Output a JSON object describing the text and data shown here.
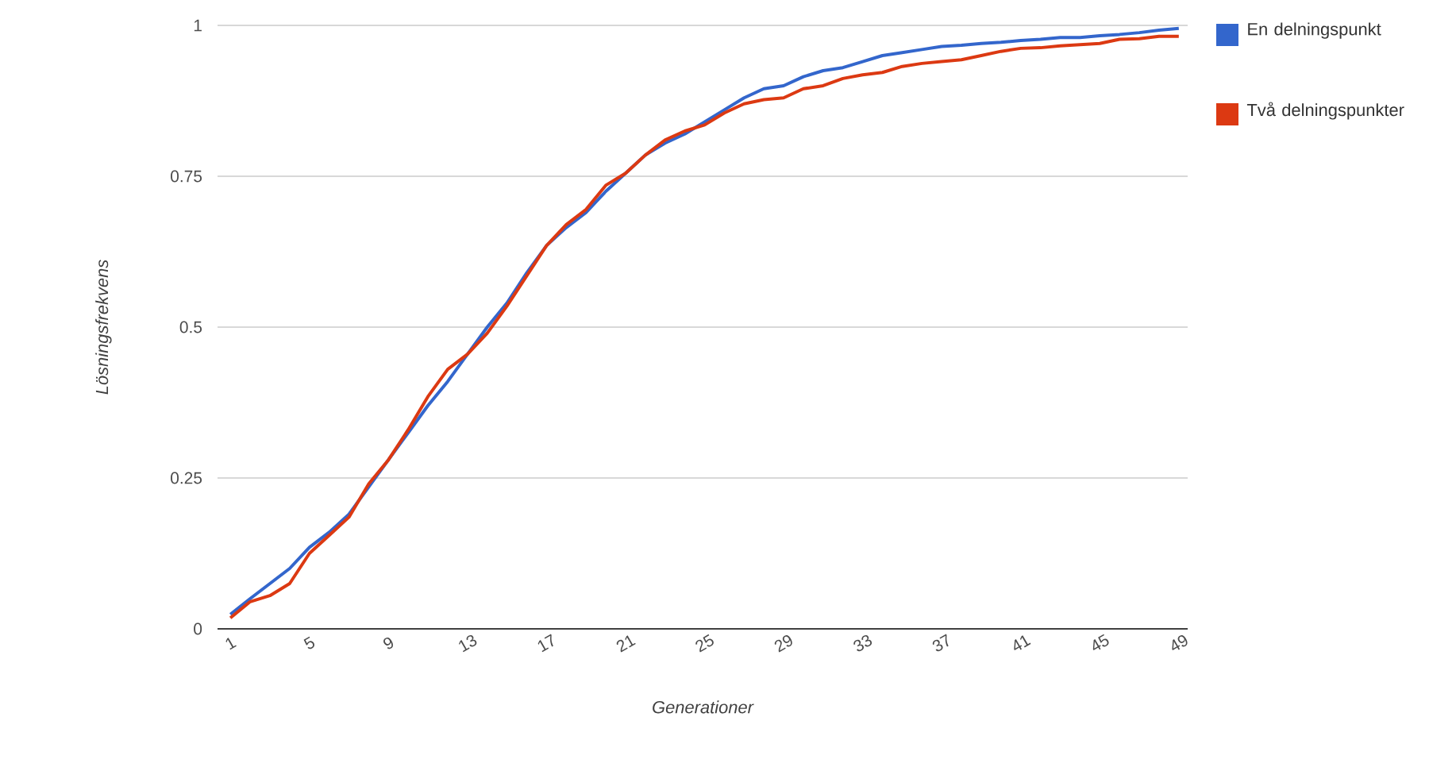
{
  "chart_data": {
    "type": "line",
    "xlabel": "Generationer",
    "ylabel": "Lösningsfrekvens",
    "categories": [
      "1",
      null,
      null,
      null,
      "5",
      null,
      null,
      null,
      "9",
      null,
      null,
      null,
      "13",
      null,
      null,
      null,
      "17",
      null,
      null,
      null,
      "21",
      null,
      null,
      null,
      "25",
      null,
      null,
      null,
      "29",
      null,
      null,
      null,
      "33",
      null,
      null,
      null,
      "37",
      null,
      null,
      null,
      "41",
      null,
      null,
      null,
      "45",
      null,
      null,
      null,
      "49"
    ],
    "series": [
      {
        "name": "En delningspunkt",
        "color": "#3366cc",
        "values": [
          0.024,
          0.05,
          0.075,
          0.1,
          0.135,
          0.16,
          0.19,
          0.235,
          0.28,
          0.325,
          0.37,
          0.41,
          0.455,
          0.5,
          0.54,
          0.59,
          0.635,
          0.665,
          0.69,
          0.725,
          0.755,
          0.785,
          0.805,
          0.82,
          0.84,
          0.86,
          0.88,
          0.895,
          0.9,
          0.915,
          0.925,
          0.93,
          0.94,
          0.95,
          0.955,
          0.96,
          0.965,
          0.967,
          0.97,
          0.972,
          0.975,
          0.977,
          0.98,
          0.98,
          0.983,
          0.985,
          0.988,
          0.992,
          0.995
        ]
      },
      {
        "name": "Två delningspunkter",
        "color": "#dc3912",
        "values": [
          0.018,
          0.045,
          0.055,
          0.075,
          0.125,
          0.155,
          0.185,
          0.24,
          0.28,
          0.33,
          0.385,
          0.43,
          0.455,
          0.49,
          0.535,
          0.585,
          0.635,
          0.67,
          0.695,
          0.735,
          0.755,
          0.785,
          0.81,
          0.825,
          0.835,
          0.855,
          0.87,
          0.877,
          0.88,
          0.895,
          0.9,
          0.912,
          0.918,
          0.922,
          0.932,
          0.937,
          0.94,
          0.943,
          0.95,
          0.957,
          0.962,
          0.963,
          0.966,
          0.968,
          0.97,
          0.977,
          0.978,
          0.982,
          0.982
        ]
      }
    ],
    "ylim": [
      0,
      1
    ],
    "yticks": [
      0,
      0.25,
      0.5,
      0.75,
      1
    ],
    "grid": "y",
    "legend": "right",
    "marker": "none",
    "line_style": "solid"
  }
}
